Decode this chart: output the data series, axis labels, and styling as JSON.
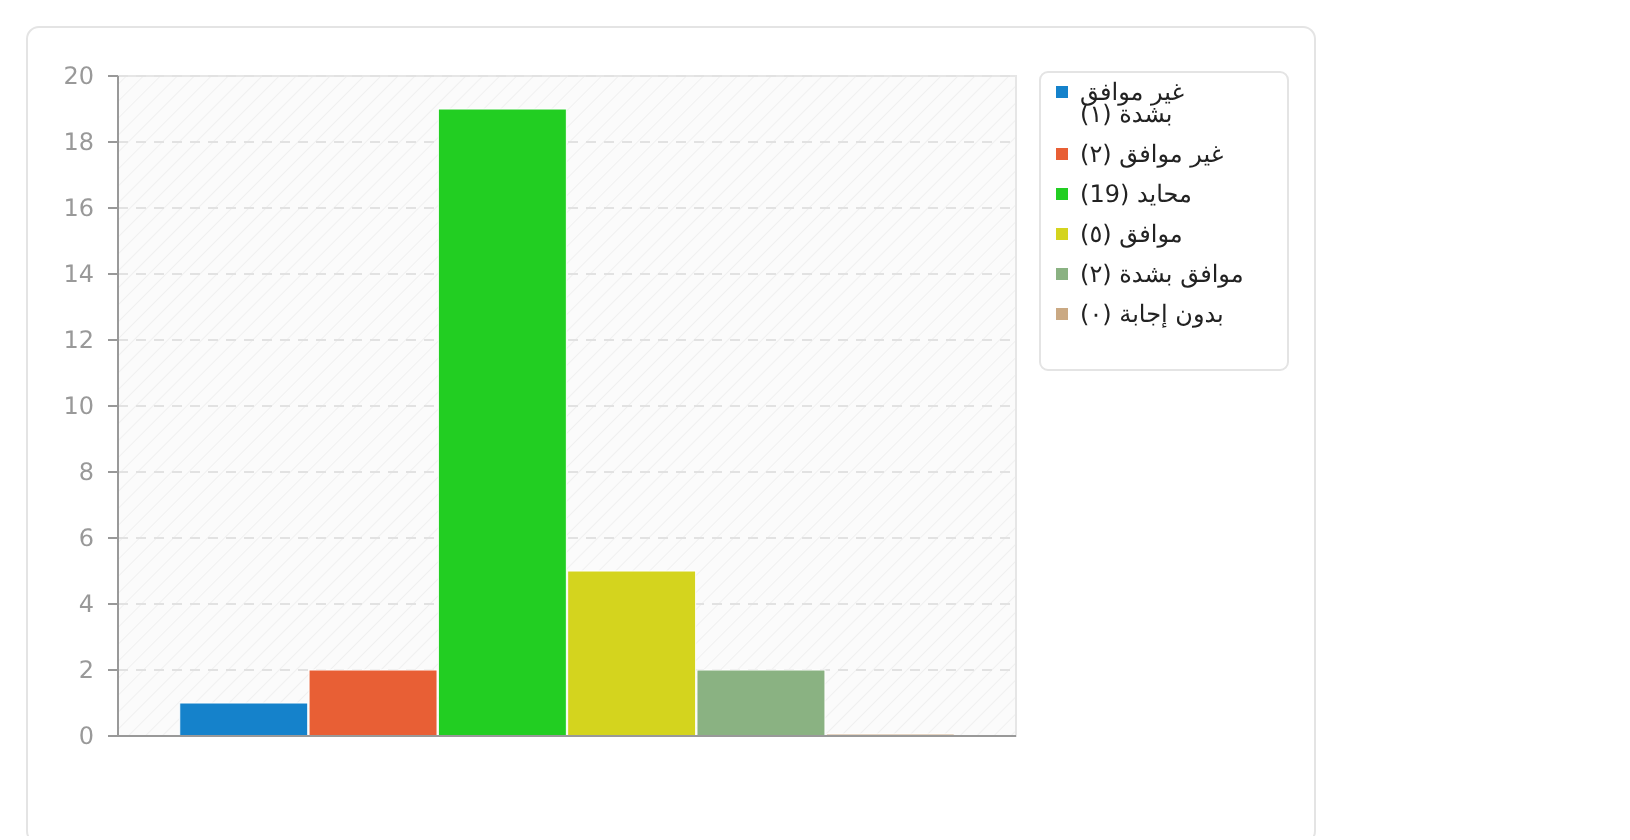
{
  "chart_data": {
    "type": "bar",
    "categories": [
      null
    ],
    "series": [
      {
        "name": "غير موافق بشدة (١)",
        "color": "#1582cb",
        "values": [
          1
        ]
      },
      {
        "name": "غير موافق (٢)",
        "color": "#e85f35",
        "values": [
          2
        ]
      },
      {
        "name": "محايد (19)",
        "color": "#22ce22",
        "values": [
          19
        ]
      },
      {
        "name": "موافق (٥)",
        "color": "#d4d41e",
        "values": [
          5
        ]
      },
      {
        "name": "موافق بشدة (٢)",
        "color": "#8ab282",
        "values": [
          2
        ]
      },
      {
        "name": "بدون إجابة (٠)",
        "color": "#caa983",
        "values": [
          0
        ]
      }
    ],
    "ylim": [
      0,
      20
    ],
    "yticks": [
      0,
      2,
      4,
      6,
      8,
      10,
      12,
      14,
      16,
      18,
      20
    ],
    "grid": "y",
    "legend": "top right"
  }
}
